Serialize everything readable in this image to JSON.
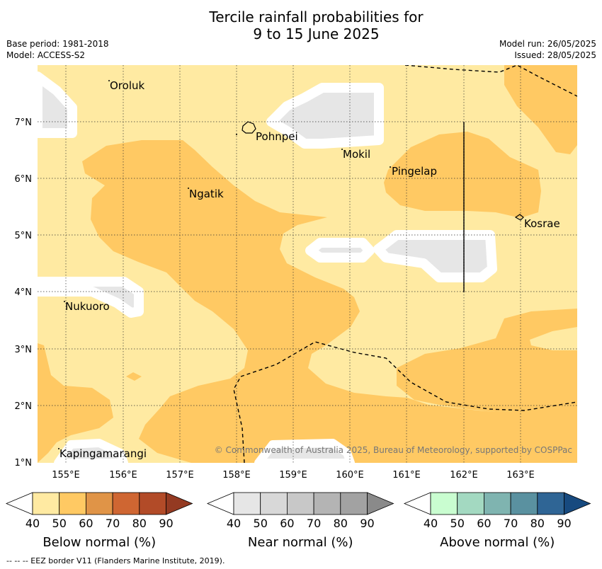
{
  "title_line1": "Tercile rainfall probabilities for",
  "title_line2": "9 to 15 June 2025",
  "base_period": "Base period: 1981-2018",
  "model": "Model: ACCESS-S2",
  "model_run": "Model run: 26/05/2025",
  "issued": "Issued: 28/05/2025",
  "copyright": "© Commonwealth of Australia 2025, Bureau of Meteorology, supported by COSPPac",
  "footer": "--  --  -- EEZ border V11 (Flanders Marine Institute, 2019).",
  "places": [
    "Oroluk",
    "Pohnpei",
    "Mokil",
    "Pingelap",
    "Ngatik",
    "Kosrae",
    "Nukuoro",
    "Kapingamarangi"
  ],
  "lon_ticks": [
    "155°E",
    "156°E",
    "157°E",
    "158°E",
    "159°E",
    "160°E",
    "161°E",
    "162°E",
    "163°E"
  ],
  "lat_ticks": [
    "7°N",
    "6°N",
    "5°N",
    "4°N",
    "3°N",
    "2°N",
    "1°N"
  ],
  "colorbars": [
    {
      "label": "Below normal (%)",
      "ticks": [
        "40",
        "50",
        "60",
        "70",
        "80",
        "90"
      ],
      "colors": [
        "#ffeaa2",
        "#ffc963",
        "#e09447",
        "#cf6632",
        "#b24b28",
        "#943a22"
      ]
    },
    {
      "label": "Near normal (%)",
      "ticks": [
        "40",
        "50",
        "60",
        "70",
        "80",
        "90"
      ],
      "colors": [
        "#e6e6e6",
        "#d8d8d8",
        "#c8c8c8",
        "#b4b4b4",
        "#a2a2a2",
        "#8a8a8a"
      ]
    },
    {
      "label": "Above normal (%)",
      "ticks": [
        "40",
        "50",
        "60",
        "70",
        "80",
        "90"
      ],
      "colors": [
        "#c9fdd0",
        "#a3d9c1",
        "#7fb4b0",
        "#5a91a0",
        "#2f6595",
        "#174a7f"
      ]
    }
  ],
  "colors": {
    "below_40": "#ffeaa2",
    "below_50": "#ffc963",
    "near_40": "#e6e6e6"
  }
}
